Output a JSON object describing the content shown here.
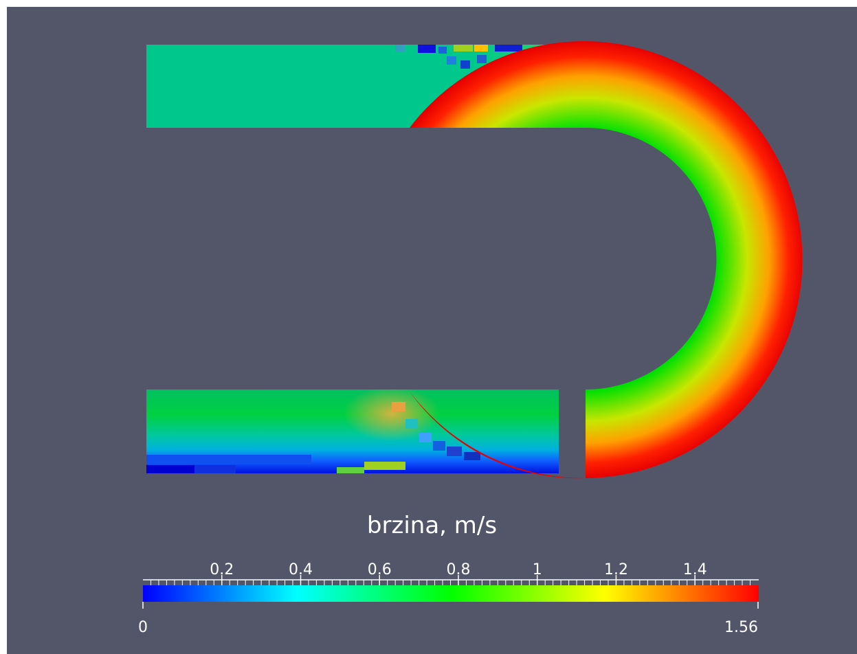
{
  "colors": {
    "background": "#535669",
    "colormap": [
      "#0000ff",
      "#00ffff",
      "#00ff00",
      "#ffff00",
      "#ff0000"
    ]
  },
  "colorbar": {
    "title": "brzina, m/s",
    "min": 0,
    "max": 1.56,
    "min_label": "0",
    "max_label": "1.56",
    "tick_values": [
      0.2,
      0.4,
      0.6,
      0.8,
      1,
      1.2,
      1.4
    ],
    "tick_labels": [
      "0.2",
      "0.4",
      "0.6",
      "0.8",
      "1",
      "1.2",
      "1.4"
    ]
  }
}
